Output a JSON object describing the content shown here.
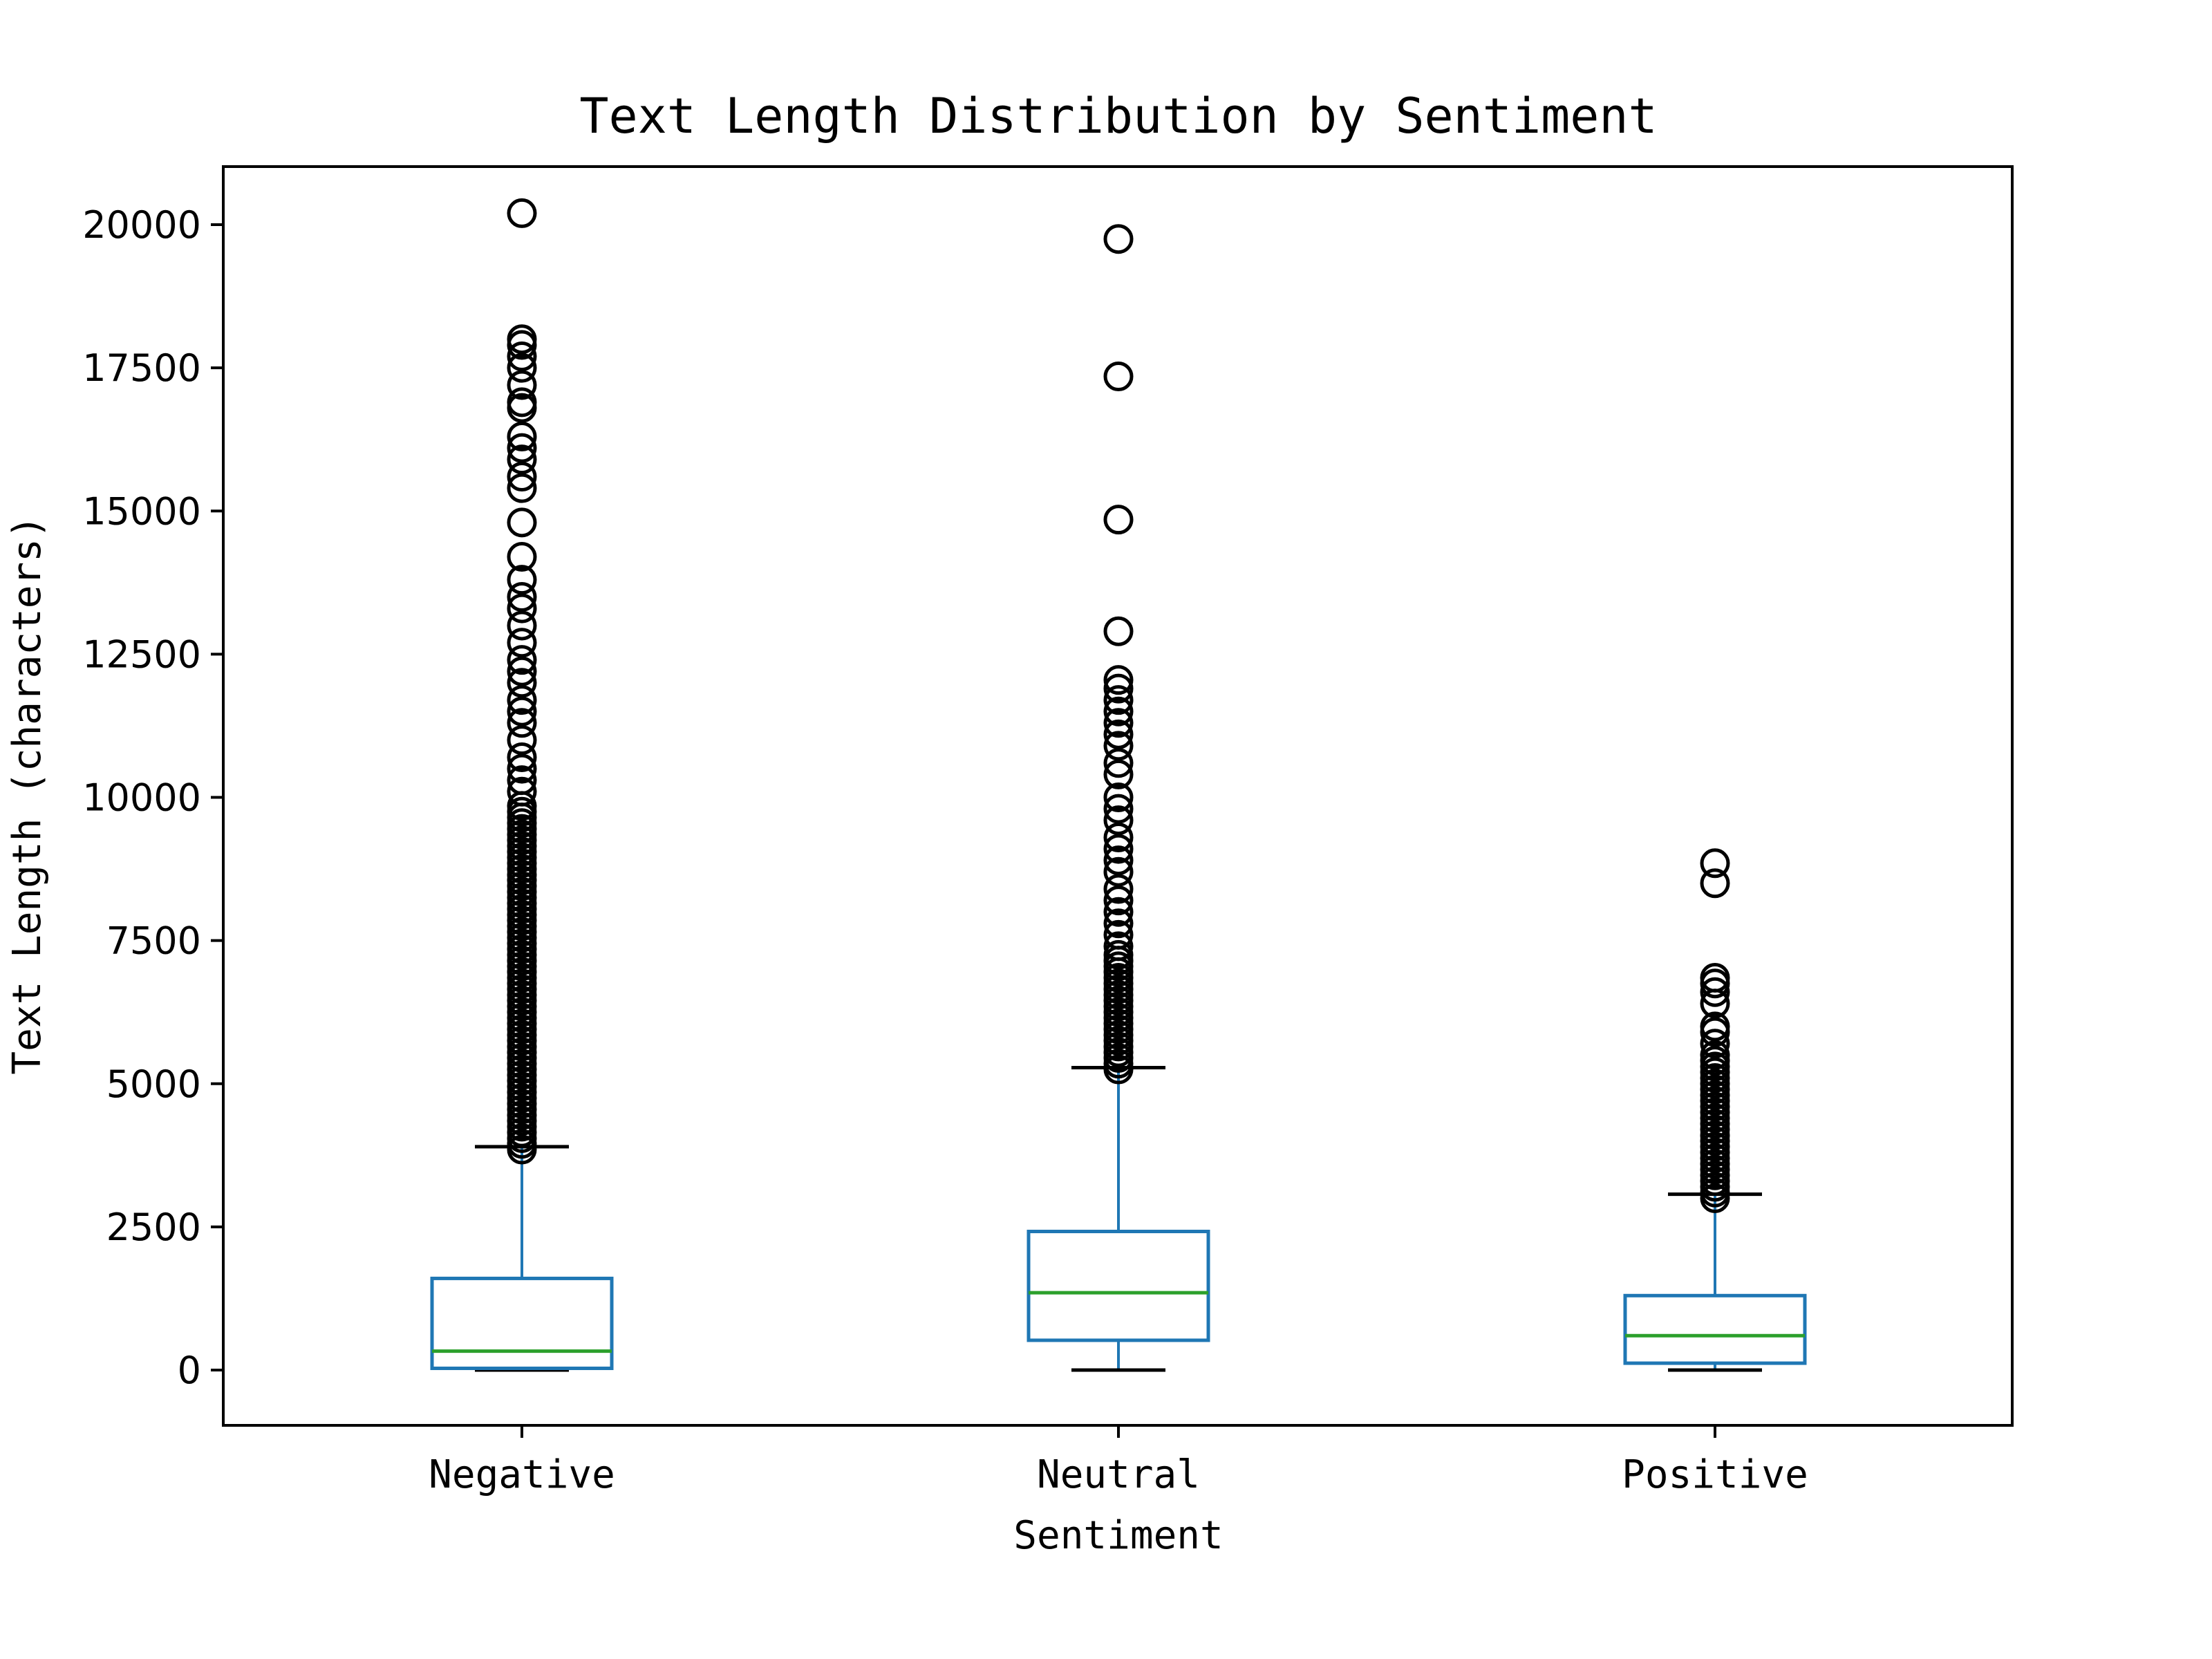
{
  "chart_data": {
    "type": "box",
    "title": "Text Length Distribution by Sentiment",
    "xlabel": "Sentiment",
    "ylabel": "Text Length (characters)",
    "categories": [
      "Negative",
      "Neutral",
      "Positive"
    ],
    "ylim": [
      -1000,
      21300
    ],
    "yticks": [
      0,
      2500,
      5000,
      7500,
      10000,
      12500,
      15000,
      17500,
      20000
    ],
    "boxes": [
      {
        "category": "Negative",
        "whisker_low": 0,
        "q1": 30,
        "median": 330,
        "q3": 1600,
        "whisker_high": 3900,
        "outliers": [
          3850,
          3950,
          4050,
          4150,
          4250,
          4350,
          4450,
          4550,
          4650,
          4750,
          4850,
          4950,
          5050,
          5150,
          5250,
          5350,
          5450,
          5550,
          5650,
          5750,
          5850,
          5950,
          6050,
          6150,
          6250,
          6350,
          6450,
          6550,
          6650,
          6750,
          6850,
          6950,
          7050,
          7150,
          7250,
          7350,
          7450,
          7550,
          7650,
          7750,
          7850,
          7950,
          8050,
          8150,
          8250,
          8350,
          8450,
          8550,
          8650,
          8750,
          8850,
          8950,
          9050,
          9150,
          9250,
          9350,
          9450,
          9550,
          9650,
          9750,
          9850,
          10100,
          10300,
          10500,
          10700,
          11000,
          11300,
          11500,
          11700,
          12000,
          12200,
          12400,
          12700,
          13000,
          13300,
          13500,
          13800,
          14200,
          14800,
          15400,
          15600,
          15900,
          16100,
          16300,
          16800,
          16900,
          17200,
          17500,
          17700,
          17900,
          18000,
          20200
        ]
      },
      {
        "category": "Neutral",
        "whisker_low": 0,
        "q1": 520,
        "median": 1350,
        "q3": 2420,
        "whisker_high": 5280,
        "outliers": [
          5250,
          5350,
          5450,
          5550,
          5650,
          5750,
          5850,
          5950,
          6050,
          6150,
          6250,
          6350,
          6450,
          6550,
          6650,
          6750,
          6850,
          6950,
          7050,
          7150,
          7250,
          7400,
          7600,
          7800,
          8000,
          8200,
          8400,
          8700,
          8900,
          9100,
          9300,
          9600,
          9800,
          10000,
          10400,
          10600,
          10900,
          11100,
          11300,
          11500,
          11700,
          11900,
          12050,
          12900,
          14850,
          17350,
          19750
        ]
      },
      {
        "category": "Positive",
        "whisker_low": 0,
        "q1": 120,
        "median": 600,
        "q3": 1300,
        "whisker_high": 3070,
        "outliers": [
          3000,
          3100,
          3200,
          3300,
          3400,
          3500,
          3600,
          3700,
          3800,
          3900,
          4000,
          4100,
          4200,
          4300,
          4400,
          4500,
          4600,
          4700,
          4800,
          4900,
          5000,
          5100,
          5200,
          5300,
          5400,
          5500,
          5700,
          5900,
          6000,
          6400,
          6600,
          6750,
          6850,
          8500,
          8850
        ]
      }
    ],
    "colors": {
      "box": "#1f77b4",
      "median": "#2ca02c",
      "cap": "#000000",
      "flier": "#000000"
    },
    "grid": false,
    "legend": "none"
  }
}
